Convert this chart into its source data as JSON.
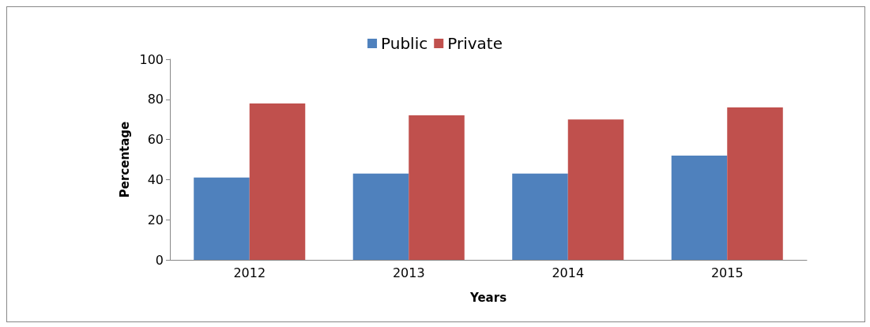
{
  "chart_data": {
    "type": "bar",
    "xlabel": "Years",
    "ylabel": "Percentage",
    "categories": [
      "2012",
      "2013",
      "2014",
      "2015"
    ],
    "series": [
      {
        "name": "Public",
        "color": "#4f81bd",
        "values": [
          41,
          43,
          43,
          52
        ]
      },
      {
        "name": "Private",
        "color": "#c0504d",
        "values": [
          78,
          72,
          70,
          76
        ]
      }
    ],
    "ylim": [
      0,
      100
    ],
    "yticks": [
      0,
      20,
      40,
      60,
      80,
      100
    ],
    "grid": false,
    "legend": "top"
  }
}
